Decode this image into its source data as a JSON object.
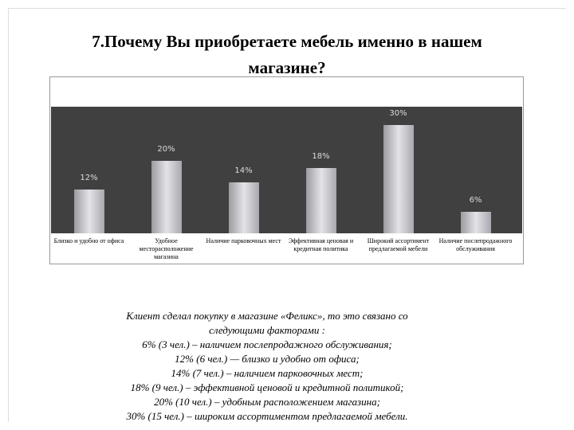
{
  "chart_data": {
    "type": "bar",
    "title": "7.Почему Вы приобретаете мебель именно в нашем магазине?",
    "categories": [
      "Близко и удобно от офиса",
      "Удобное месторасположение магазина",
      "Наличие парковочных мест",
      "Эффективная ценовая и кредитная политика",
      "Широкий ассортимент предлагаемой мебели",
      "Наличие послепродажного обслуживания"
    ],
    "values": [
      12,
      20,
      14,
      18,
      30,
      6
    ],
    "value_labels": [
      "12%",
      "20%",
      "14%",
      "18%",
      "30%",
      "6%"
    ],
    "color": "#c8c8cc"
  },
  "text": {
    "lines": [
      "Клиент сделал покупку в магазине «Феликс», то это связано со",
      "следующими факторами :",
      "6% (3 чел.) – наличием послепродажного обслуживания;",
      "12% (6 чел.) — близко и удобно от офиса;",
      "14% (7 чел.) – наличием парковочных мест;",
      "18% (9 чел.) – эффективной ценовой и кредитной политикой;",
      "20% (10 чел.) – удобным расположением магазина;",
      "30% (15 чел.) – широким ассортиментом предлагаемой мебели."
    ]
  }
}
